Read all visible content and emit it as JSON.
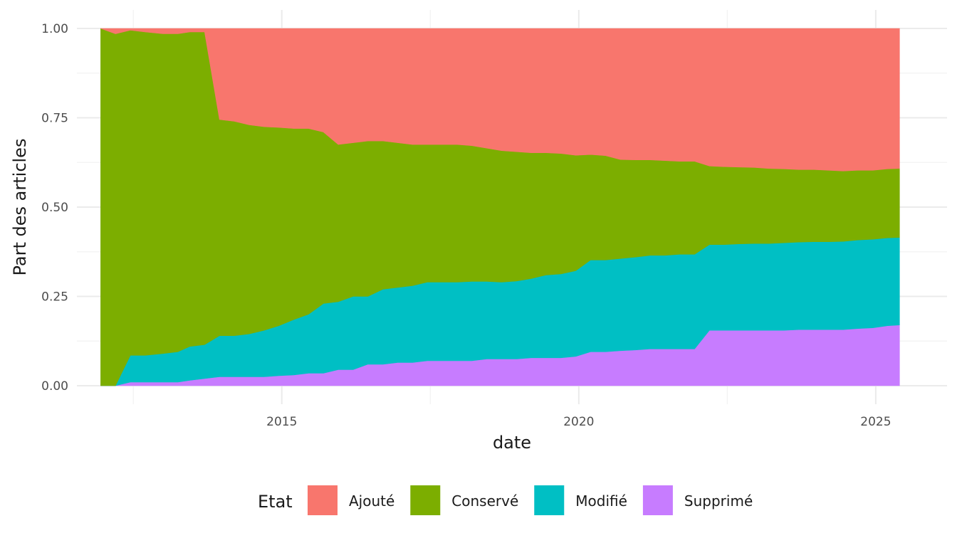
{
  "chart_data": {
    "type": "area",
    "stacked": true,
    "xlabel": "date",
    "ylabel": "Part des articles",
    "xlim": [
      2011.55,
      2026.2
    ],
    "ylim": [
      0,
      1
    ],
    "x_ticks": [
      2015,
      2020,
      2025
    ],
    "y_ticks": [
      0,
      0.25,
      0.5,
      0.75,
      1
    ],
    "y_tick_labels": [
      "0.00",
      "0.25",
      "0.50",
      "0.75",
      "1.00"
    ],
    "grid": true,
    "legend": {
      "title": "Etat",
      "position": "bottom"
    },
    "x": [
      2011.95,
      2012.2,
      2012.45,
      2012.7,
      2013.0,
      2013.25,
      2013.45,
      2013.7,
      2013.95,
      2014.2,
      2014.45,
      2014.7,
      2014.95,
      2015.2,
      2015.45,
      2015.7,
      2015.95,
      2016.2,
      2016.45,
      2016.7,
      2016.95,
      2017.2,
      2017.45,
      2017.7,
      2017.95,
      2018.2,
      2018.45,
      2018.7,
      2018.95,
      2019.2,
      2019.45,
      2019.7,
      2019.95,
      2020.2,
      2020.45,
      2020.7,
      2020.95,
      2021.2,
      2021.45,
      2021.7,
      2021.95,
      2022.2,
      2022.45,
      2022.7,
      2022.95,
      2023.2,
      2023.45,
      2023.7,
      2023.95,
      2024.2,
      2024.45,
      2024.7,
      2024.95,
      2025.2,
      2025.4
    ],
    "series": [
      {
        "name": "Supprimé",
        "color": "#C77CFF",
        "values": [
          0.0,
          0.0,
          0.01,
          0.01,
          0.01,
          0.01,
          0.015,
          0.02,
          0.025,
          0.025,
          0.025,
          0.025,
          0.028,
          0.03,
          0.035,
          0.035,
          0.045,
          0.045,
          0.06,
          0.06,
          0.065,
          0.065,
          0.07,
          0.07,
          0.07,
          0.07,
          0.075,
          0.075,
          0.075,
          0.078,
          0.078,
          0.078,
          0.082,
          0.095,
          0.095,
          0.098,
          0.1,
          0.103,
          0.103,
          0.103,
          0.103,
          0.155,
          0.155,
          0.155,
          0.155,
          0.155,
          0.155,
          0.157,
          0.157,
          0.157,
          0.157,
          0.16,
          0.162,
          0.168,
          0.17
        ]
      },
      {
        "name": "Modifié",
        "color": "#00BFC4",
        "values": [
          0.0,
          0.0,
          0.075,
          0.075,
          0.08,
          0.085,
          0.095,
          0.095,
          0.115,
          0.115,
          0.12,
          0.13,
          0.14,
          0.155,
          0.165,
          0.195,
          0.19,
          0.205,
          0.19,
          0.21,
          0.21,
          0.215,
          0.22,
          0.22,
          0.22,
          0.222,
          0.217,
          0.215,
          0.218,
          0.222,
          0.232,
          0.235,
          0.24,
          0.257,
          0.257,
          0.258,
          0.26,
          0.262,
          0.262,
          0.265,
          0.265,
          0.24,
          0.24,
          0.242,
          0.243,
          0.243,
          0.245,
          0.245,
          0.246,
          0.246,
          0.247,
          0.248,
          0.248,
          0.246,
          0.245
        ]
      },
      {
        "name": "Conservé",
        "color": "#7CAE00",
        "values": [
          1.0,
          0.985,
          0.91,
          0.905,
          0.895,
          0.89,
          0.88,
          0.875,
          0.605,
          0.6,
          0.585,
          0.57,
          0.555,
          0.535,
          0.52,
          0.48,
          0.44,
          0.43,
          0.435,
          0.415,
          0.405,
          0.395,
          0.385,
          0.385,
          0.385,
          0.38,
          0.373,
          0.368,
          0.362,
          0.352,
          0.342,
          0.337,
          0.323,
          0.295,
          0.292,
          0.277,
          0.272,
          0.267,
          0.265,
          0.26,
          0.26,
          0.22,
          0.218,
          0.215,
          0.213,
          0.21,
          0.207,
          0.203,
          0.202,
          0.2,
          0.197,
          0.195,
          0.193,
          0.193,
          0.193
        ]
      },
      {
        "name": "Ajouté",
        "color": "#F8766D",
        "values": [
          0.0,
          0.015,
          0.005,
          0.01,
          0.015,
          0.015,
          0.01,
          0.01,
          0.255,
          0.26,
          0.27,
          0.275,
          0.277,
          0.28,
          0.28,
          0.29,
          0.325,
          0.32,
          0.315,
          0.315,
          0.32,
          0.325,
          0.325,
          0.325,
          0.325,
          0.328,
          0.335,
          0.342,
          0.345,
          0.348,
          0.348,
          0.35,
          0.355,
          0.353,
          0.356,
          0.367,
          0.368,
          0.368,
          0.37,
          0.372,
          0.372,
          0.385,
          0.387,
          0.388,
          0.389,
          0.392,
          0.393,
          0.395,
          0.395,
          0.397,
          0.399,
          0.397,
          0.397,
          0.393,
          0.392
        ]
      }
    ]
  }
}
